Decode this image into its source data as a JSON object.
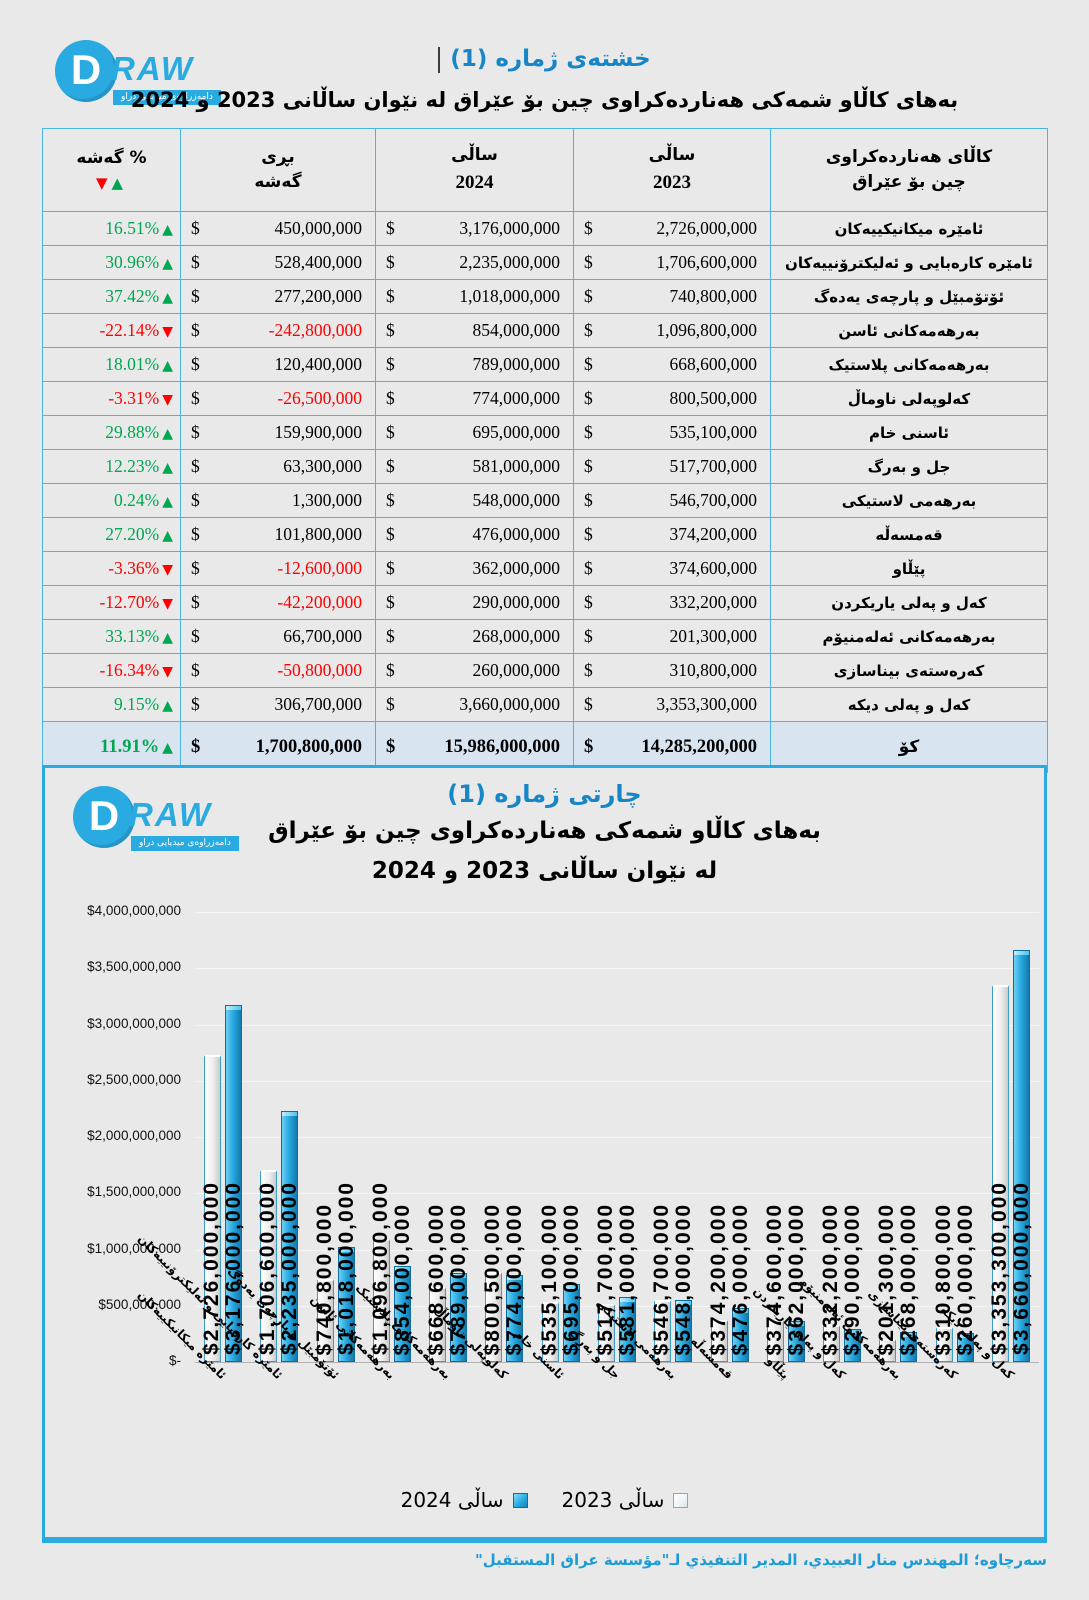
{
  "colors": {
    "accent": "#29abe2",
    "title_blue": "#1786c7",
    "positive_green": "#00a651",
    "negative_red": "#ff0000",
    "total_row_bg": "#d9e4f1",
    "source_text": "#1b9cd8"
  },
  "logo": {
    "letter": "D",
    "brand": "RAW",
    "tagline": "دامەزراوەی میدیایی دراو"
  },
  "table_section": {
    "title": "خشتەی ژمارە (1)",
    "subtitle": "بەهای کاڵاو شمەکی هەناردەکراوی چین بۆ عێراق لە نێوان ساڵانی 2023 و 2024",
    "columns": {
      "pct_label": "گەشە %",
      "pct_down_arrow": "▼",
      "pct_up_arrow": "▲",
      "growth_line1": "بڕی",
      "growth_line2": "گەشە",
      "y2024_line1": "ساڵی",
      "y2024_line2": "2024",
      "y2023_line1": "ساڵی",
      "y2023_line2": "2023",
      "goods_line1": "کاڵای هەناردەکراوی",
      "goods_line2": "چین بۆ عێراق"
    },
    "currency_symbol": "$",
    "rows": [
      {
        "name": "ئامێرە میکانیکییەکان",
        "y2023": 2726000000,
        "y2024": 3176000000,
        "growth": 450000000,
        "pct": "16.51%",
        "trend": "up"
      },
      {
        "name": "ئامێرە کارەبایی و ئەلیکترۆنییەکان",
        "y2023": 1706600000,
        "y2024": 2235000000,
        "growth": 528400000,
        "pct": "30.96%",
        "trend": "up"
      },
      {
        "name": "ئۆتۆمبێل و پارچەی یەدەگ",
        "y2023": 740800000,
        "y2024": 1018000000,
        "growth": 277200000,
        "pct": "37.42%",
        "trend": "up"
      },
      {
        "name": "بەرهەمەکانی ئاسن",
        "y2023": 1096800000,
        "y2024": 854000000,
        "growth": -242800000,
        "pct": "-22.14%",
        "trend": "down"
      },
      {
        "name": "بەرهەمەکانی پلاستیک",
        "y2023": 668600000,
        "y2024": 789000000,
        "growth": 120400000,
        "pct": "18.01%",
        "trend": "up"
      },
      {
        "name": "کەلوپەلی ناوماڵ",
        "y2023": 800500000,
        "y2024": 774000000,
        "growth": -26500000,
        "pct": "-3.31%",
        "trend": "down"
      },
      {
        "name": "ئاسنی خام",
        "y2023": 535100000,
        "y2024": 695000000,
        "growth": 159900000,
        "pct": "29.88%",
        "trend": "up"
      },
      {
        "name": "جل و بەرگ",
        "y2023": 517700000,
        "y2024": 581000000,
        "growth": 63300000,
        "pct": "12.23%",
        "trend": "up"
      },
      {
        "name": "بەرهەمی لاستیکی",
        "y2023": 546700000,
        "y2024": 548000000,
        "growth": 1300000,
        "pct": "0.24%",
        "trend": "up"
      },
      {
        "name": "قەمسەڵە",
        "y2023": 374200000,
        "y2024": 476000000,
        "growth": 101800000,
        "pct": "27.20%",
        "trend": "up"
      },
      {
        "name": "پێڵاو",
        "y2023": 374600000,
        "y2024": 362000000,
        "growth": -12600000,
        "pct": "-3.36%",
        "trend": "down"
      },
      {
        "name": "کەل و پەلی یاریکردن",
        "y2023": 332200000,
        "y2024": 290000000,
        "growth": -42200000,
        "pct": "-12.70%",
        "trend": "down"
      },
      {
        "name": "بەرهەمەکانی ئەلەمنیۆم",
        "y2023": 201300000,
        "y2024": 268000000,
        "growth": 66700000,
        "pct": "33.13%",
        "trend": "up"
      },
      {
        "name": "کەرەستەی بیناسازی",
        "y2023": 310800000,
        "y2024": 260000000,
        "growth": -50800000,
        "pct": "-16.34%",
        "trend": "down"
      },
      {
        "name": "کەل و پەلی دیکە",
        "y2023": 3353300000,
        "y2024": 3660000000,
        "growth": 306700000,
        "pct": "9.15%",
        "trend": "up"
      }
    ],
    "total": {
      "label": "کۆ",
      "y2023": 14285200000,
      "y2024": 15986000000,
      "growth": 1700800000,
      "pct": "11.91%",
      "trend": "up"
    }
  },
  "chart_data": {
    "type": "bar",
    "title": "چارتی ژمارە (1)",
    "subtitle1": "بەهای کاڵاو شمەکی هەناردەکراوی چین بۆ عێراق",
    "subtitle2": "لە نێوان ساڵانی 2023 و 2024",
    "categories": [
      "ئامێرە میکانیکییەکان",
      "ئامێرە کارەبایی و ئەلیکترۆنییەکان",
      "ئۆتۆمبێل و پارچەی یەدەگ",
      "بەرهەمەکانی ئاسن",
      "بەرهەمەکانی پلاستیک",
      "کەلوپەلی ناوماڵ",
      "ئاسنی خام",
      "جل و بەرگ",
      "بەرهەمی لاستیکی",
      "قەمسەڵە",
      "پێڵاو",
      "کەل و پەلی یاریکردن",
      "بەرهەمەکانی ئەلەمنیۆم",
      "کەرەستەی بیناسازی",
      "کەل و پەلی دیکە"
    ],
    "series": [
      {
        "name": "ساڵی 2023",
        "values": [
          2726000000,
          1706600000,
          740800000,
          1096800000,
          668600000,
          800500000,
          535100000,
          517700000,
          546700000,
          374200000,
          374600000,
          332200000,
          201300000,
          310800000,
          3353300000
        ]
      },
      {
        "name": "ساڵی 2024",
        "values": [
          3176000000,
          2235000000,
          1018000000,
          854000000,
          789000000,
          774000000,
          695000000,
          581000000,
          548000000,
          476000000,
          362000000,
          290000000,
          268000000,
          260000000,
          3660000000
        ]
      }
    ],
    "ylim": [
      0,
      4000000000
    ],
    "ytick_step": 500000000,
    "y_zero_label": "$-",
    "grid": true,
    "legend_position": "bottom",
    "legend": [
      {
        "label": "ساڵی 2024",
        "swatch": "blue"
      },
      {
        "label": "ساڵی 2023",
        "swatch": "white"
      }
    ],
    "source": "سەرچاوە؛ المهندس منار العبيدي، المدير التنفيذي لـ\"مؤسسة عراق المستقبل\""
  }
}
